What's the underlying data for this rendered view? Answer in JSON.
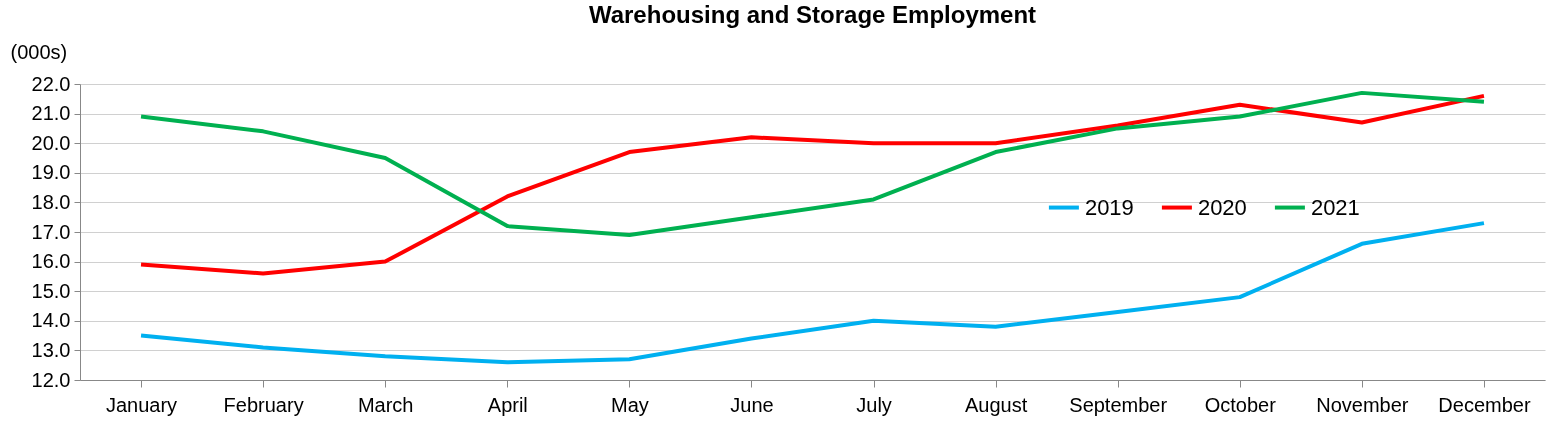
{
  "chart_data": {
    "type": "line",
    "title": "Warehousing and Storage Employment",
    "ylabel": "(000s)",
    "categories": [
      "January",
      "February",
      "March",
      "April",
      "May",
      "June",
      "July",
      "August",
      "September",
      "October",
      "November",
      "December"
    ],
    "series": [
      {
        "name": "2019",
        "color": "#00b0f0",
        "values": [
          13.5,
          13.1,
          12.8,
          12.6,
          12.7,
          13.4,
          14.0,
          13.8,
          14.3,
          14.8,
          16.6,
          17.3
        ]
      },
      {
        "name": "2020",
        "color": "#ff0000",
        "values": [
          15.9,
          15.6,
          16.0,
          18.2,
          19.7,
          20.2,
          20.0,
          20.0,
          20.6,
          21.3,
          20.7,
          21.6
        ]
      },
      {
        "name": "2021",
        "color": "#00b050",
        "values": [
          20.9,
          20.4,
          19.5,
          17.2,
          16.9,
          17.5,
          18.1,
          19.7,
          20.5,
          20.9,
          21.7,
          21.4
        ]
      }
    ],
    "ylim": [
      12,
      22
    ],
    "yticks": [
      {
        "value": 12,
        "label": "12.0"
      },
      {
        "value": 13,
        "label": "13.0"
      },
      {
        "value": 14,
        "label": "14.0"
      },
      {
        "value": 15,
        "label": "15.0"
      },
      {
        "value": 16,
        "label": "16.0"
      },
      {
        "value": 17,
        "label": "17.0"
      },
      {
        "value": 18,
        "label": "18.0"
      },
      {
        "value": 19,
        "label": "19.0"
      },
      {
        "value": 20,
        "label": "20.0"
      },
      {
        "value": 21,
        "label": "21.0"
      },
      {
        "value": 22,
        "label": "22.0"
      }
    ],
    "grid": "y",
    "legend": "right",
    "marker": "none",
    "line_style": "solid"
  }
}
